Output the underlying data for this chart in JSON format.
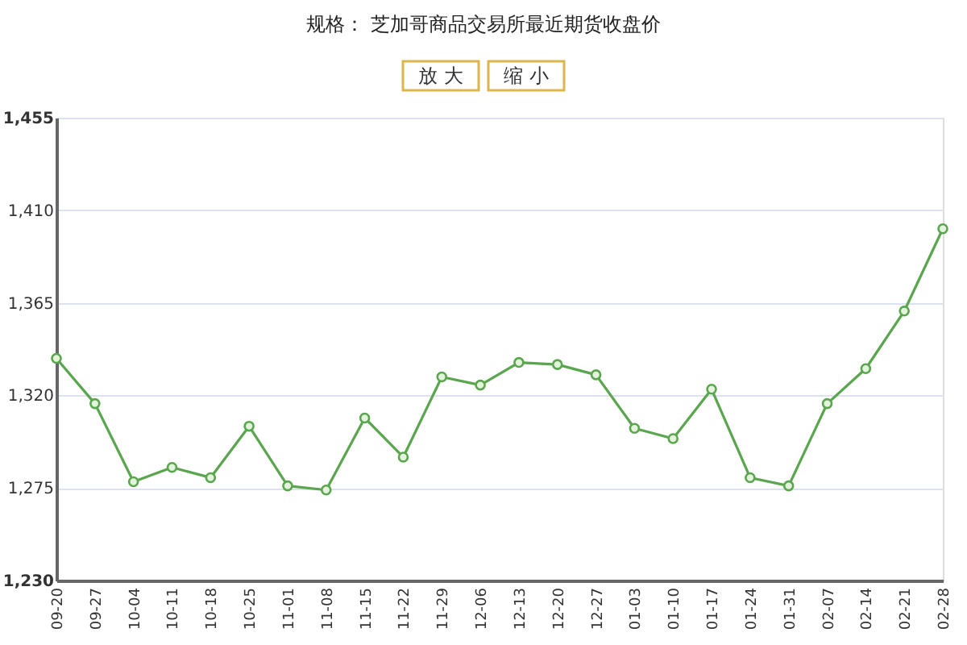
{
  "chart_data": {
    "type": "line",
    "title": "规格：  芝加哥商品交易所最近期货收盘价",
    "annotations": [
      "放 大",
      "缩 小"
    ],
    "categories": [
      "09-20",
      "09-27",
      "10-04",
      "10-11",
      "10-18",
      "10-25",
      "11-01",
      "11-08",
      "11-15",
      "11-22",
      "11-29",
      "12-06",
      "12-13",
      "12-20",
      "12-27",
      "01-03",
      "01-10",
      "01-17",
      "01-24",
      "01-31",
      "02-07",
      "02-14",
      "02-21",
      "02-28"
    ],
    "series": [
      {
        "color": "#5aa64e",
        "values": [
          1338,
          1316,
          1278,
          1285,
          1280,
          1305,
          1276,
          1274,
          1309,
          1290,
          1329,
          1325,
          1336,
          1335,
          1330,
          1304,
          1299,
          1323,
          1280,
          1276,
          1316,
          1333,
          1361,
          1401
        ]
      }
    ],
    "ylim": [
      1230,
      1455
    ],
    "yticks": [
      {
        "value": 1230,
        "label": "1,230"
      },
      {
        "value": 1275,
        "label": "1,275"
      },
      {
        "value": 1320,
        "label": "1,320"
      },
      {
        "value": 1365,
        "label": "1,365"
      },
      {
        "value": 1410,
        "label": "1,410"
      },
      {
        "value": 1455,
        "label": "1,455"
      }
    ],
    "grid": "y",
    "marker": "circle",
    "line_style": "solid"
  }
}
